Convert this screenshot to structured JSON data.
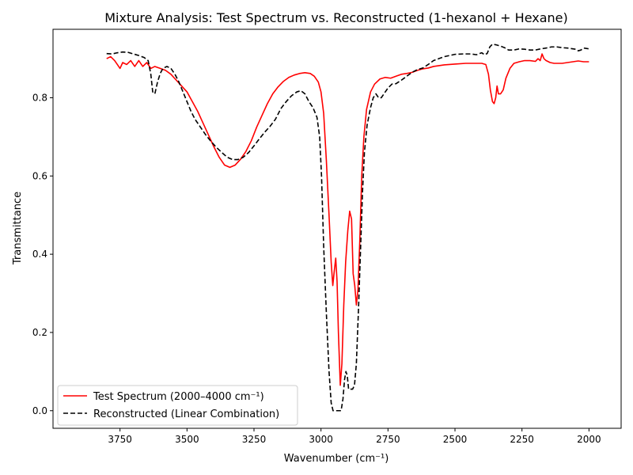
{
  "chart_data": {
    "type": "line",
    "title": "Mixture Analysis: Test Spectrum vs. Reconstructed (1-hexanol + Hexane)",
    "xlabel": "Wavenumber (cm⁻¹)",
    "ylabel": "Transmittance",
    "xlim": [
      4000,
      1880
    ],
    "ylim": [
      -0.045,
      0.975
    ],
    "x_reversed": true,
    "grid": false,
    "legend_position": "lower-left",
    "x_ticks": [
      3750,
      3500,
      3250,
      3000,
      2750,
      2500,
      2250,
      2000
    ],
    "y_ticks": [
      0.0,
      0.2,
      0.4,
      0.6,
      0.8
    ],
    "series": [
      {
        "name": "Test Spectrum (2000–4000 cm⁻¹)",
        "color": "#ff0000",
        "style": "solid",
        "points": [
          [
            3800,
            0.9
          ],
          [
            3785,
            0.905
          ],
          [
            3770,
            0.895
          ],
          [
            3760,
            0.885
          ],
          [
            3750,
            0.875
          ],
          [
            3740,
            0.89
          ],
          [
            3725,
            0.885
          ],
          [
            3710,
            0.895
          ],
          [
            3695,
            0.88
          ],
          [
            3680,
            0.895
          ],
          [
            3665,
            0.88
          ],
          [
            3650,
            0.89
          ],
          [
            3635,
            0.875
          ],
          [
            3620,
            0.88
          ],
          [
            3600,
            0.875
          ],
          [
            3580,
            0.87
          ],
          [
            3560,
            0.86
          ],
          [
            3540,
            0.845
          ],
          [
            3520,
            0.83
          ],
          [
            3500,
            0.815
          ],
          [
            3480,
            0.79
          ],
          [
            3460,
            0.765
          ],
          [
            3440,
            0.735
          ],
          [
            3420,
            0.705
          ],
          [
            3400,
            0.675
          ],
          [
            3380,
            0.648
          ],
          [
            3360,
            0.628
          ],
          [
            3340,
            0.622
          ],
          [
            3320,
            0.628
          ],
          [
            3300,
            0.643
          ],
          [
            3280,
            0.663
          ],
          [
            3260,
            0.69
          ],
          [
            3240,
            0.725
          ],
          [
            3220,
            0.755
          ],
          [
            3200,
            0.785
          ],
          [
            3180,
            0.81
          ],
          [
            3160,
            0.828
          ],
          [
            3140,
            0.842
          ],
          [
            3120,
            0.852
          ],
          [
            3100,
            0.858
          ],
          [
            3080,
            0.862
          ],
          [
            3060,
            0.864
          ],
          [
            3040,
            0.862
          ],
          [
            3025,
            0.855
          ],
          [
            3010,
            0.84
          ],
          [
            3000,
            0.815
          ],
          [
            2990,
            0.76
          ],
          [
            2980,
            0.64
          ],
          [
            2970,
            0.5
          ],
          [
            2962,
            0.38
          ],
          [
            2956,
            0.32
          ],
          [
            2950,
            0.36
          ],
          [
            2945,
            0.39
          ],
          [
            2940,
            0.33
          ],
          [
            2935,
            0.2
          ],
          [
            2928,
            0.065
          ],
          [
            2922,
            0.12
          ],
          [
            2915,
            0.27
          ],
          [
            2908,
            0.38
          ],
          [
            2900,
            0.46
          ],
          [
            2893,
            0.51
          ],
          [
            2886,
            0.49
          ],
          [
            2880,
            0.35
          ],
          [
            2874,
            0.32
          ],
          [
            2868,
            0.27
          ],
          [
            2862,
            0.31
          ],
          [
            2855,
            0.44
          ],
          [
            2848,
            0.6
          ],
          [
            2840,
            0.7
          ],
          [
            2830,
            0.77
          ],
          [
            2815,
            0.815
          ],
          [
            2800,
            0.835
          ],
          [
            2780,
            0.848
          ],
          [
            2760,
            0.852
          ],
          [
            2740,
            0.85
          ],
          [
            2720,
            0.855
          ],
          [
            2700,
            0.86
          ],
          [
            2680,
            0.862
          ],
          [
            2660,
            0.865
          ],
          [
            2640,
            0.87
          ],
          [
            2620,
            0.874
          ],
          [
            2600,
            0.876
          ],
          [
            2580,
            0.88
          ],
          [
            2560,
            0.882
          ],
          [
            2540,
            0.884
          ],
          [
            2500,
            0.886
          ],
          [
            2460,
            0.888
          ],
          [
            2420,
            0.888
          ],
          [
            2400,
            0.888
          ],
          [
            2385,
            0.885
          ],
          [
            2375,
            0.86
          ],
          [
            2368,
            0.82
          ],
          [
            2360,
            0.79
          ],
          [
            2354,
            0.785
          ],
          [
            2348,
            0.8
          ],
          [
            2343,
            0.83
          ],
          [
            2338,
            0.81
          ],
          [
            2330,
            0.81
          ],
          [
            2320,
            0.82
          ],
          [
            2310,
            0.85
          ],
          [
            2295,
            0.875
          ],
          [
            2280,
            0.888
          ],
          [
            2260,
            0.892
          ],
          [
            2240,
            0.895
          ],
          [
            2220,
            0.895
          ],
          [
            2200,
            0.893
          ],
          [
            2190,
            0.9
          ],
          [
            2182,
            0.895
          ],
          [
            2175,
            0.912
          ],
          [
            2168,
            0.9
          ],
          [
            2160,
            0.895
          ],
          [
            2145,
            0.89
          ],
          [
            2130,
            0.888
          ],
          [
            2100,
            0.888
          ],
          [
            2070,
            0.891
          ],
          [
            2040,
            0.894
          ],
          [
            2020,
            0.892
          ],
          [
            2000,
            0.892
          ]
        ]
      },
      {
        "name": "Reconstructed (Linear Combination)",
        "color": "#000000",
        "style": "dashed",
        "points": [
          [
            3800,
            0.913
          ],
          [
            3780,
            0.912
          ],
          [
            3760,
            0.915
          ],
          [
            3740,
            0.917
          ],
          [
            3720,
            0.916
          ],
          [
            3700,
            0.912
          ],
          [
            3680,
            0.908
          ],
          [
            3660,
            0.903
          ],
          [
            3645,
            0.895
          ],
          [
            3635,
            0.86
          ],
          [
            3628,
            0.815
          ],
          [
            3620,
            0.81
          ],
          [
            3610,
            0.84
          ],
          [
            3600,
            0.862
          ],
          [
            3590,
            0.875
          ],
          [
            3575,
            0.88
          ],
          [
            3560,
            0.875
          ],
          [
            3545,
            0.86
          ],
          [
            3530,
            0.84
          ],
          [
            3515,
            0.815
          ],
          [
            3500,
            0.79
          ],
          [
            3485,
            0.765
          ],
          [
            3470,
            0.745
          ],
          [
            3450,
            0.725
          ],
          [
            3430,
            0.705
          ],
          [
            3410,
            0.688
          ],
          [
            3390,
            0.673
          ],
          [
            3370,
            0.66
          ],
          [
            3350,
            0.648
          ],
          [
            3330,
            0.642
          ],
          [
            3310,
            0.642
          ],
          [
            3290,
            0.648
          ],
          [
            3270,
            0.66
          ],
          [
            3250,
            0.677
          ],
          [
            3230,
            0.695
          ],
          [
            3210,
            0.712
          ],
          [
            3190,
            0.727
          ],
          [
            3170,
            0.745
          ],
          [
            3150,
            0.772
          ],
          [
            3130,
            0.79
          ],
          [
            3110,
            0.805
          ],
          [
            3090,
            0.815
          ],
          [
            3075,
            0.818
          ],
          [
            3060,
            0.81
          ],
          [
            3045,
            0.79
          ],
          [
            3030,
            0.775
          ],
          [
            3015,
            0.75
          ],
          [
            3005,
            0.7
          ],
          [
            2998,
            0.6
          ],
          [
            2990,
            0.42
          ],
          [
            2980,
            0.25
          ],
          [
            2970,
            0.1
          ],
          [
            2962,
            0.02
          ],
          [
            2955,
            0.0
          ],
          [
            2940,
            0.0
          ],
          [
            2925,
            0.0
          ],
          [
            2918,
            0.03
          ],
          [
            2912,
            0.08
          ],
          [
            2907,
            0.1
          ],
          [
            2902,
            0.09
          ],
          [
            2897,
            0.055
          ],
          [
            2890,
            0.055
          ],
          [
            2882,
            0.055
          ],
          [
            2875,
            0.065
          ],
          [
            2868,
            0.12
          ],
          [
            2860,
            0.26
          ],
          [
            2852,
            0.42
          ],
          [
            2845,
            0.56
          ],
          [
            2838,
            0.66
          ],
          [
            2828,
            0.73
          ],
          [
            2815,
            0.775
          ],
          [
            2805,
            0.8
          ],
          [
            2795,
            0.81
          ],
          [
            2785,
            0.8
          ],
          [
            2775,
            0.8
          ],
          [
            2765,
            0.81
          ],
          [
            2750,
            0.825
          ],
          [
            2735,
            0.835
          ],
          [
            2720,
            0.836
          ],
          [
            2700,
            0.845
          ],
          [
            2680,
            0.855
          ],
          [
            2660,
            0.865
          ],
          [
            2640,
            0.872
          ],
          [
            2620,
            0.876
          ],
          [
            2600,
            0.885
          ],
          [
            2580,
            0.895
          ],
          [
            2560,
            0.9
          ],
          [
            2540,
            0.905
          ],
          [
            2520,
            0.908
          ],
          [
            2500,
            0.911
          ],
          [
            2470,
            0.912
          ],
          [
            2440,
            0.912
          ],
          [
            2420,
            0.91
          ],
          [
            2400,
            0.915
          ],
          [
            2390,
            0.91
          ],
          [
            2380,
            0.913
          ],
          [
            2370,
            0.93
          ],
          [
            2360,
            0.937
          ],
          [
            2345,
            0.935
          ],
          [
            2330,
            0.932
          ],
          [
            2315,
            0.928
          ],
          [
            2300,
            0.922
          ],
          [
            2280,
            0.922
          ],
          [
            2260,
            0.925
          ],
          [
            2240,
            0.924
          ],
          [
            2220,
            0.922
          ],
          [
            2200,
            0.922
          ],
          [
            2180,
            0.925
          ],
          [
            2160,
            0.927
          ],
          [
            2140,
            0.93
          ],
          [
            2120,
            0.93
          ],
          [
            2100,
            0.928
          ],
          [
            2080,
            0.927
          ],
          [
            2060,
            0.925
          ],
          [
            2050,
            0.924
          ],
          [
            2040,
            0.92
          ],
          [
            2030,
            0.922
          ],
          [
            2020,
            0.927
          ],
          [
            2010,
            0.926
          ],
          [
            2000,
            0.925
          ]
        ]
      }
    ]
  }
}
